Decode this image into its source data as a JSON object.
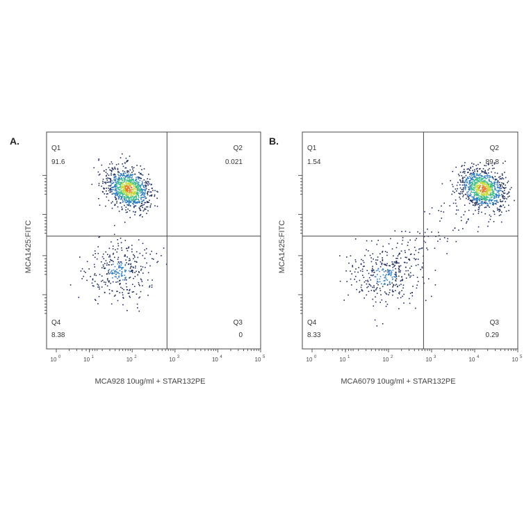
{
  "chart_data": [
    {
      "type": "scatter",
      "panel_label": "A.",
      "xlabel": "MCA928 10ug/ml + STAR132PE",
      "ylabel": "MCA1425:FITC",
      "x_scale": "log",
      "x_ticks": [
        "0",
        "1",
        "2",
        "3",
        "4",
        "5"
      ],
      "x_tick_base": "10",
      "x_gate": 650,
      "y_gate_fraction": 0.52,
      "quadrants": [
        {
          "name": "Q1",
          "value": "91.6",
          "position": "top-left"
        },
        {
          "name": "Q2",
          "value": "0.021",
          "position": "top-right"
        },
        {
          "name": "Q3",
          "value": "0",
          "position": "bottom-right"
        },
        {
          "name": "Q4",
          "value": "8.38",
          "position": "bottom-left"
        }
      ],
      "populations": [
        {
          "x_center": 80,
          "y_center_fraction": 0.74,
          "density": "high"
        },
        {
          "x_center": 50,
          "y_center_fraction": 0.36,
          "density": "low"
        }
      ]
    },
    {
      "type": "scatter",
      "panel_label": "B.",
      "xlabel": "MCA6079 10ug/ml + STAR132PE",
      "ylabel": "MCA1425:FITC",
      "x_scale": "log",
      "x_ticks": [
        "0",
        "1",
        "2",
        "3",
        "4",
        "5"
      ],
      "x_tick_base": "10",
      "x_gate": 650,
      "y_gate_fraction": 0.52,
      "quadrants": [
        {
          "name": "Q1",
          "value": "1.54",
          "position": "top-left"
        },
        {
          "name": "Q2",
          "value": "89.8",
          "position": "top-right"
        },
        {
          "name": "Q3",
          "value": "0.29",
          "position": "bottom-right"
        },
        {
          "name": "Q4",
          "value": "8.33",
          "position": "bottom-left"
        }
      ],
      "populations": [
        {
          "x_center": 15000,
          "y_center_fraction": 0.74,
          "density": "high"
        },
        {
          "x_center": 80,
          "y_center_fraction": 0.34,
          "density": "low"
        }
      ]
    }
  ],
  "colors": {
    "sparse": "#1c2a5e",
    "mid": "#2b7cc4",
    "dense": "#3fbf8a",
    "denser": "#c6d93a",
    "core": "#e8772b",
    "frame": "#444444"
  }
}
